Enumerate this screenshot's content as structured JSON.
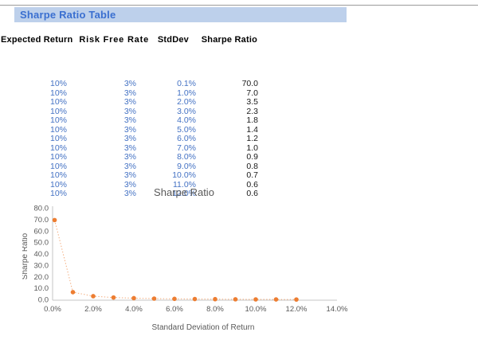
{
  "title_bar": {
    "label": "Sharpe Ratio Table",
    "bg": "#bdd0eb",
    "text_color": "#3a6fd0"
  },
  "table": {
    "headers": [
      "Expected Return",
      "Risk Free Rate",
      "StdDev",
      "Sharpe Ratio"
    ],
    "rows": [
      [
        "10%",
        "3%",
        "0.1%",
        "70.0"
      ],
      [
        "10%",
        "3%",
        "1.0%",
        "7.0"
      ],
      [
        "10%",
        "3%",
        "2.0%",
        "3.5"
      ],
      [
        "10%",
        "3%",
        "3.0%",
        "2.3"
      ],
      [
        "10%",
        "3%",
        "4.0%",
        "1.8"
      ],
      [
        "10%",
        "3%",
        "5.0%",
        "1.4"
      ],
      [
        "10%",
        "3%",
        "6.0%",
        "1.2"
      ],
      [
        "10%",
        "3%",
        "7.0%",
        "1.0"
      ],
      [
        "10%",
        "3%",
        "8.0%",
        "0.9"
      ],
      [
        "10%",
        "3%",
        "9.0%",
        "0.8"
      ],
      [
        "10%",
        "3%",
        "10.0%",
        "0.7"
      ],
      [
        "10%",
        "3%",
        "11.0%",
        "0.6"
      ],
      [
        "10%",
        "3%",
        "12.0%",
        "0.6"
      ]
    ],
    "column_colors": [
      "#4472c4",
      "#4472c4",
      "#4472c4",
      "#1a1a1a"
    ]
  },
  "chart_data": {
    "type": "scatter",
    "title": "Sharpe Ratio",
    "xlabel": "Standard Deviation of Return",
    "ylabel": "Sharpe Ratio",
    "x": [
      0.1,
      1,
      2,
      3,
      4,
      5,
      6,
      7,
      8,
      9,
      10,
      11,
      12
    ],
    "y": [
      70,
      7,
      3.5,
      2.33,
      1.75,
      1.4,
      1.17,
      1.0,
      0.88,
      0.78,
      0.7,
      0.64,
      0.58
    ],
    "xlim": [
      0,
      14
    ],
    "ylim": [
      0,
      80
    ],
    "x_ticks": [
      "0.0%",
      "2.0%",
      "4.0%",
      "6.0%",
      "8.0%",
      "10.0%",
      "12.0%",
      "14.0%"
    ],
    "y_ticks": [
      "0.0",
      "10.0",
      "20.0",
      "30.0",
      "40.0",
      "50.0",
      "60.0",
      "70.0",
      "80.0"
    ],
    "marker_color": "#ed7d31",
    "line_style": "dotted",
    "axis_line_color": "#c6c6c6",
    "label_color": "#595959",
    "grid": false,
    "legend": false
  }
}
